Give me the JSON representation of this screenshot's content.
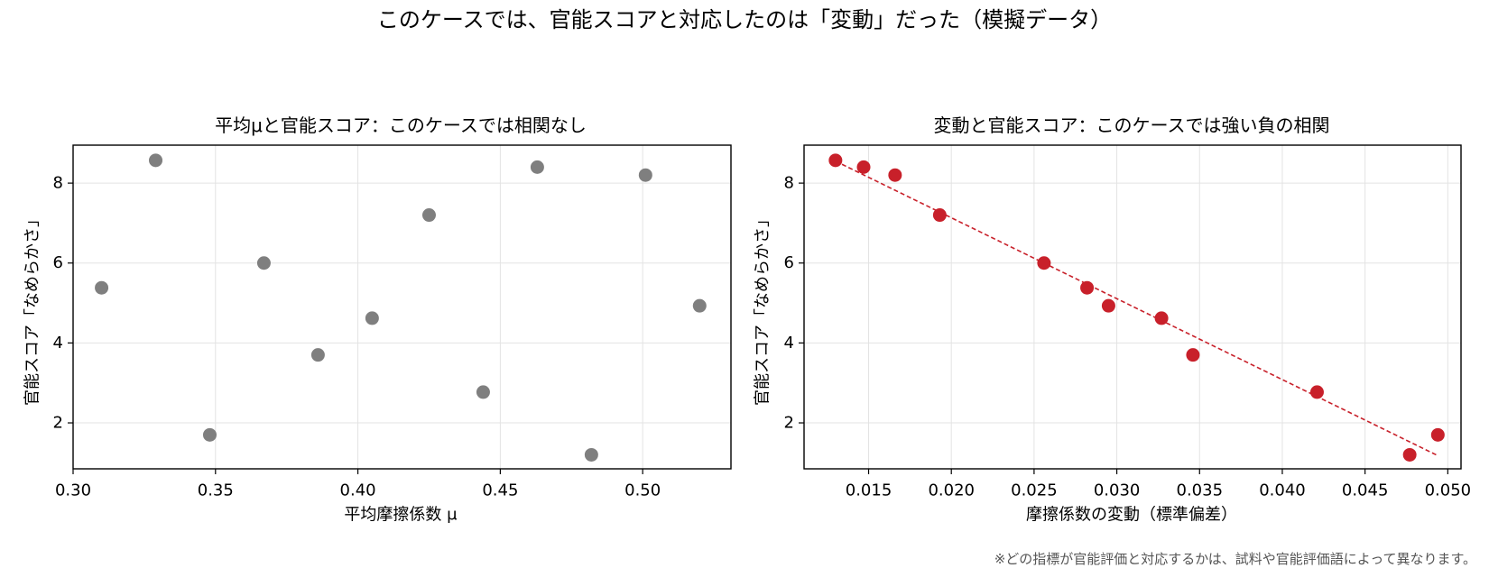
{
  "suptitle": "このケースでは、官能スコアと対応したのは「変動」だった（模擬データ）",
  "footnote": "※どの指標が官能評価と対応するかは、試料や官能評価語によって異なります。",
  "colors": {
    "left_points": "#7f7f7f",
    "right_points": "#c8202a",
    "grid": "#e3e3e3",
    "axis": "#000000"
  },
  "chart_data": [
    {
      "type": "scatter",
      "title": "平均μと官能スコア：このケースでは相関なし",
      "xlabel": "平均摩擦係数 μ",
      "ylabel": "官能スコア「なめらかさ」",
      "xlim": [
        0.3,
        0.531
      ],
      "ylim": [
        0.85,
        8.95
      ],
      "xticks": [
        0.3,
        0.35,
        0.4,
        0.45,
        0.5
      ],
      "xtick_labels": [
        "0.30",
        "0.35",
        "0.40",
        "0.45",
        "0.50"
      ],
      "yticks": [
        2,
        4,
        6,
        8
      ],
      "ytick_labels": [
        "2",
        "4",
        "6",
        "8"
      ],
      "grid": true,
      "points": [
        {
          "x": 0.31,
          "y": 5.38
        },
        {
          "x": 0.329,
          "y": 8.57
        },
        {
          "x": 0.348,
          "y": 1.7
        },
        {
          "x": 0.367,
          "y": 6.0
        },
        {
          "x": 0.386,
          "y": 3.7
        },
        {
          "x": 0.405,
          "y": 4.62
        },
        {
          "x": 0.425,
          "y": 7.2
        },
        {
          "x": 0.444,
          "y": 2.77
        },
        {
          "x": 0.463,
          "y": 8.4
        },
        {
          "x": 0.482,
          "y": 1.2
        },
        {
          "x": 0.501,
          "y": 8.2
        },
        {
          "x": 0.52,
          "y": 4.93
        }
      ]
    },
    {
      "type": "scatter",
      "title": "変動と官能スコア：このケースでは強い負の相関",
      "xlabel": "摩擦係数の変動（標準偏差）",
      "ylabel": "官能スコア「なめらかさ」",
      "xlim": [
        0.0111,
        0.0508
      ],
      "ylim": [
        0.85,
        8.95
      ],
      "xticks": [
        0.015,
        0.02,
        0.025,
        0.03,
        0.035,
        0.04,
        0.045,
        0.05
      ],
      "xtick_labels": [
        "0.015",
        "0.020",
        "0.025",
        "0.030",
        "0.035",
        "0.040",
        "0.045",
        "0.050"
      ],
      "yticks": [
        2,
        4,
        6,
        8
      ],
      "ytick_labels": [
        "2",
        "4",
        "6",
        "8"
      ],
      "grid": true,
      "points": [
        {
          "x": 0.013,
          "y": 8.57
        },
        {
          "x": 0.0147,
          "y": 8.4
        },
        {
          "x": 0.0166,
          "y": 8.2
        },
        {
          "x": 0.0193,
          "y": 7.2
        },
        {
          "x": 0.0256,
          "y": 6.0
        },
        {
          "x": 0.0282,
          "y": 5.38
        },
        {
          "x": 0.0295,
          "y": 4.93
        },
        {
          "x": 0.0327,
          "y": 4.62
        },
        {
          "x": 0.0346,
          "y": 3.7
        },
        {
          "x": 0.0421,
          "y": 2.77
        },
        {
          "x": 0.0477,
          "y": 1.2
        },
        {
          "x": 0.0494,
          "y": 1.7
        }
      ],
      "fit_line": {
        "style": "dashed",
        "x": [
          0.013,
          0.0494
        ],
        "y": [
          8.55,
          1.18
        ]
      }
    }
  ]
}
